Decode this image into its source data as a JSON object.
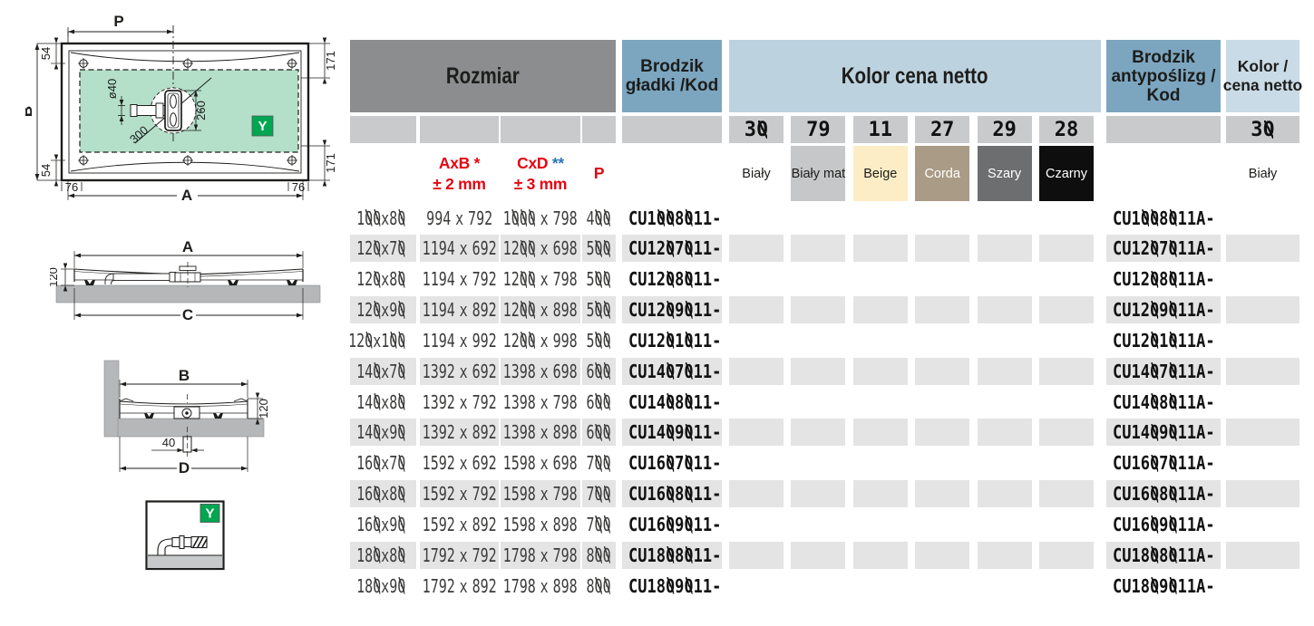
{
  "header": {
    "rozmiar": "Rozmiar",
    "gladki1": "Brodzik",
    "gladki2": "gładki /Kod",
    "kolor": "Kolor cena netto",
    "anty1": "Brodzik",
    "anty2": "antypoślizg /",
    "anty3": "Kod",
    "kolor2a": "Kolor /",
    "kolor2b": "cena netto"
  },
  "subheader": {
    "axb": "AxB",
    "axb_star": "*",
    "axb_tol": "± 2 mm",
    "cxd": "CxD",
    "cxd_star": "**",
    "cxd_tol": "± 3 mm",
    "p": "P"
  },
  "colors": [
    {
      "code": "30",
      "name": "Biały",
      "bg": "#ffffff",
      "fg": "#1d1d1b"
    },
    {
      "code": "79",
      "name": "Biały mat",
      "bg": "#c6c7c9",
      "fg": "#1d1d1b"
    },
    {
      "code": "11",
      "name": "Beige",
      "bg": "#fcedc6",
      "fg": "#1d1d1b"
    },
    {
      "code": "27",
      "name": "Corda",
      "bg": "#a99b85",
      "fg": "#ffffff"
    },
    {
      "code": "29",
      "name": "Szary",
      "bg": "#6c6e70",
      "fg": "#ffffff"
    },
    {
      "code": "28",
      "name": "Czarny",
      "bg": "#0e0e0e",
      "fg": "#ffffff"
    }
  ],
  "anti_color": {
    "code": "30",
    "name": "Biały"
  },
  "table": {
    "rows": [
      {
        "size": "100x80",
        "axb": "994 x 792",
        "cxd": "1000 x 798",
        "p": "400",
        "code": "CU1008011-",
        "acode": "CU1008011A-"
      },
      {
        "size": "120x70",
        "axb": "1194 x 692",
        "cxd": "1200 x 698",
        "p": "500",
        "code": "CU1207011-",
        "acode": "CU1207011A-"
      },
      {
        "size": "120x80",
        "axb": "1194 x 792",
        "cxd": "1200 x 798",
        "p": "500",
        "code": "CU1208011-",
        "acode": "CU1208011A-"
      },
      {
        "size": "120x90",
        "axb": "1194 x 892",
        "cxd": "1200 x 898",
        "p": "500",
        "code": "CU1209011-",
        "acode": "CU1209011A-"
      },
      {
        "size": "120x100",
        "axb": "1194 x 992",
        "cxd": "1200 x 998",
        "p": "500",
        "code": "CU1201011-",
        "acode": "CU1201011A-"
      },
      {
        "size": "140x70",
        "axb": "1392 x 692",
        "cxd": "1398 x 698",
        "p": "600",
        "code": "CU1407011-",
        "acode": "CU1407011A-"
      },
      {
        "size": "140x80",
        "axb": "1392 x 792",
        "cxd": "1398 x 798",
        "p": "600",
        "code": "CU1408011-",
        "acode": "CU1408011A-"
      },
      {
        "size": "140x90",
        "axb": "1392 x 892",
        "cxd": "1398 x 898",
        "p": "600",
        "code": "CU1409011-",
        "acode": "CU1409011A-"
      },
      {
        "size": "160x70",
        "axb": "1592 x 692",
        "cxd": "1598 x 698",
        "p": "700",
        "code": "CU1607011-",
        "acode": "CU1607011A-"
      },
      {
        "size": "160x80",
        "axb": "1592 x 792",
        "cxd": "1598 x 798",
        "p": "700",
        "code": "CU1608011-",
        "acode": "CU1608011A-"
      },
      {
        "size": "160x90",
        "axb": "1592 x 892",
        "cxd": "1598 x 898",
        "p": "700",
        "code": "CU1609011-",
        "acode": "CU1609011A-"
      },
      {
        "size": "180x80",
        "axb": "1792 x 792",
        "cxd": "1798 x 798",
        "p": "800",
        "code": "CU1808011-",
        "acode": "CU1808011A-"
      },
      {
        "size": "180x90",
        "axb": "1792 x 892",
        "cxd": "1798 x 898",
        "p": "800",
        "code": "CU1809011-",
        "acode": "CU1809011A-"
      }
    ]
  },
  "drawings": {
    "plan": {
      "p": "P",
      "b": "B",
      "a": "A",
      "d54": "54",
      "d171": "171",
      "d76": "76",
      "dia": "ø40",
      "d260": "260",
      "d300": "300",
      "y": "Y"
    },
    "sideA": {
      "a": "A",
      "c": "C",
      "d120": "120"
    },
    "sideB": {
      "b": "B",
      "d": "D",
      "d120": "120",
      "d40": "40"
    },
    "ybox": {
      "y": "Y"
    }
  }
}
